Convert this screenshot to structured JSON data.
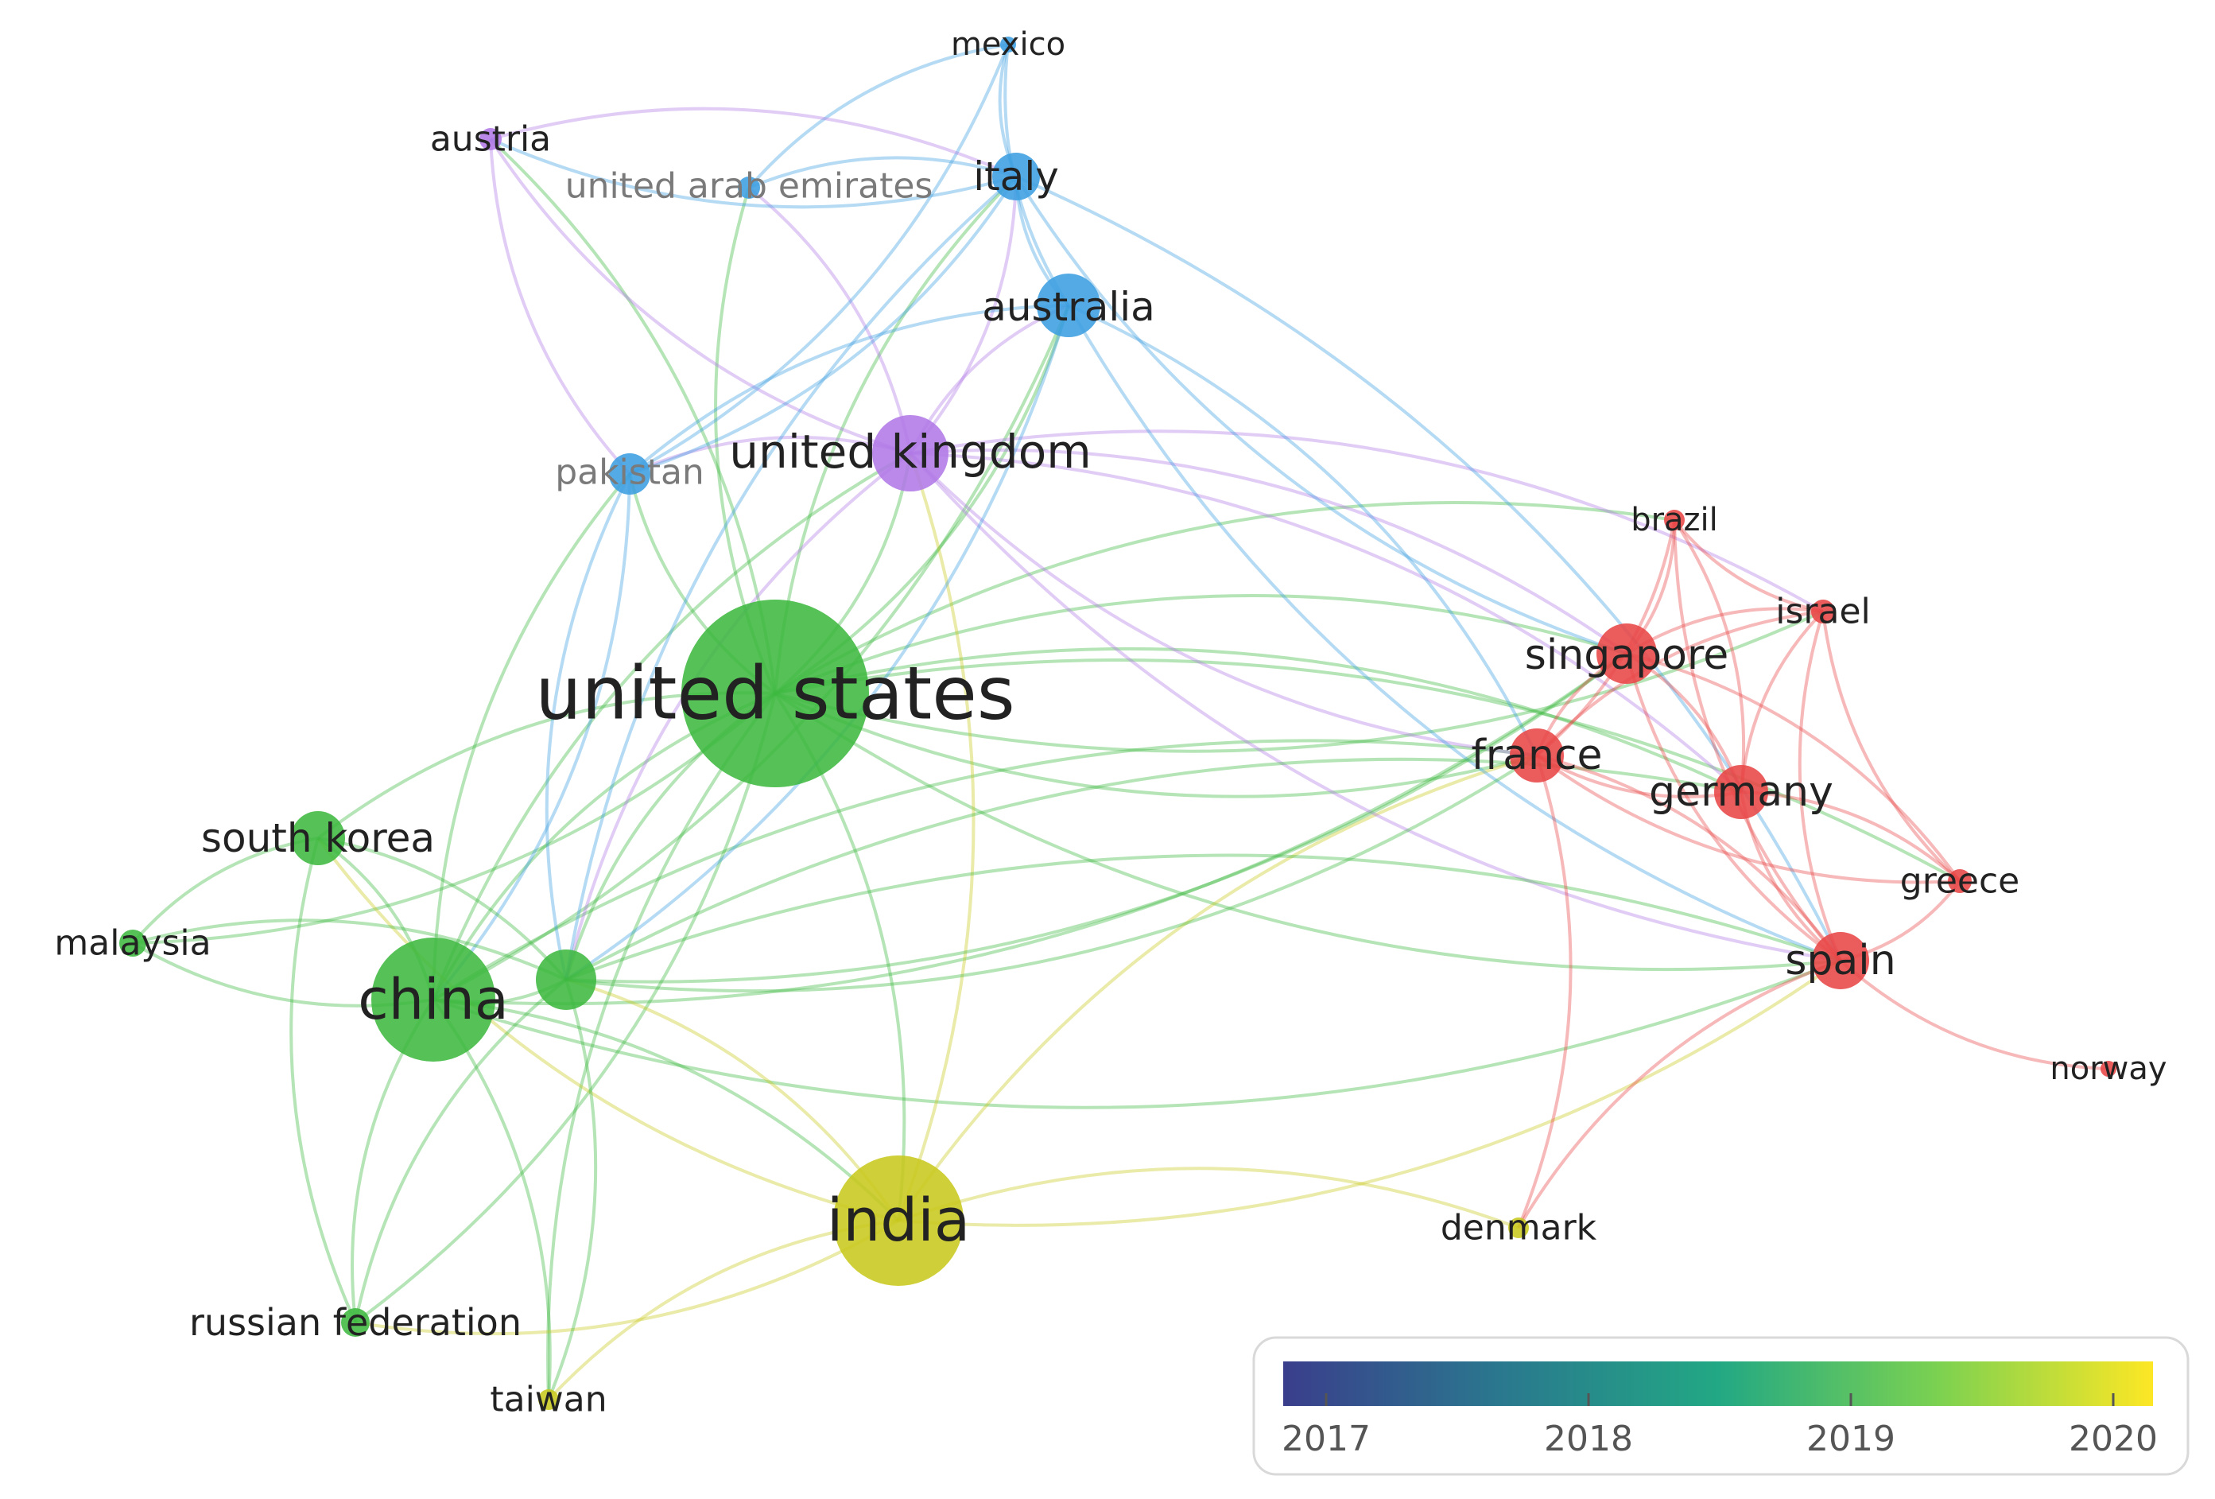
{
  "nodes": [
    {
      "id": "united_states",
      "label": "united states",
      "cluster": "green"
    },
    {
      "id": "china",
      "label": "china",
      "cluster": "green"
    },
    {
      "id": "india",
      "label": "india",
      "cluster": "yellow"
    },
    {
      "id": "united_kingdom",
      "label": "united kingdom",
      "cluster": "purple"
    },
    {
      "id": "italy",
      "label": "italy",
      "cluster": "blue"
    },
    {
      "id": "australia",
      "label": "australia",
      "cluster": "blue"
    },
    {
      "id": "pakistan",
      "label": "pakistan",
      "cluster": "blue"
    },
    {
      "id": "united_arab_emirates",
      "label": "united arab emirates",
      "cluster": "blue"
    },
    {
      "id": "mexico",
      "label": "mexico",
      "cluster": "blue"
    },
    {
      "id": "austria",
      "label": "austria",
      "cluster": "purple"
    },
    {
      "id": "south_korea",
      "label": "south korea",
      "cluster": "green"
    },
    {
      "id": "malaysia",
      "label": "malaysia",
      "cluster": "green"
    },
    {
      "id": "unlabeled_green",
      "label": "",
      "cluster": "green"
    },
    {
      "id": "russian_federation",
      "label": "russian federation",
      "cluster": "green"
    },
    {
      "id": "taiwan",
      "label": "taiwan",
      "cluster": "yellow"
    },
    {
      "id": "denmark",
      "label": "denmark",
      "cluster": "yellow"
    },
    {
      "id": "singapore",
      "label": "singapore",
      "cluster": "red"
    },
    {
      "id": "france",
      "label": "france",
      "cluster": "red"
    },
    {
      "id": "germany",
      "label": "germany",
      "cluster": "red"
    },
    {
      "id": "brazil",
      "label": "brazil",
      "cluster": "red"
    },
    {
      "id": "israel",
      "label": "israel",
      "cluster": "red"
    },
    {
      "id": "greece",
      "label": "greece",
      "cluster": "red"
    },
    {
      "id": "spain",
      "label": "spain",
      "cluster": "red"
    },
    {
      "id": "norway",
      "label": "norway",
      "cluster": "red"
    }
  ],
  "edges": [
    [
      "united_states",
      "china"
    ],
    [
      "united_states",
      "india"
    ],
    [
      "united_states",
      "united_kingdom"
    ],
    [
      "united_states",
      "italy"
    ],
    [
      "united_states",
      "australia"
    ],
    [
      "united_states",
      "pakistan"
    ],
    [
      "united_states",
      "south_korea"
    ],
    [
      "united_states",
      "malaysia"
    ],
    [
      "united_states",
      "unlabeled_green"
    ],
    [
      "united_states",
      "russian_federation"
    ],
    [
      "united_states",
      "taiwan"
    ],
    [
      "united_states",
      "singapore"
    ],
    [
      "united_states",
      "france"
    ],
    [
      "united_states",
      "germany"
    ],
    [
      "united_states",
      "spain"
    ],
    [
      "united_states",
      "brazil"
    ],
    [
      "united_states",
      "israel"
    ],
    [
      "united_states",
      "greece"
    ],
    [
      "united_states",
      "austria"
    ],
    [
      "united_states",
      "united_arab_emirates"
    ],
    [
      "china",
      "south_korea"
    ],
    [
      "china",
      "malaysia"
    ],
    [
      "china",
      "unlabeled_green"
    ],
    [
      "china",
      "india"
    ],
    [
      "china",
      "russian_federation"
    ],
    [
      "china",
      "united_kingdom"
    ],
    [
      "china",
      "australia"
    ],
    [
      "china",
      "pakistan"
    ],
    [
      "china",
      "spain"
    ],
    [
      "china",
      "france"
    ],
    [
      "china",
      "singapore"
    ],
    [
      "china",
      "taiwan"
    ],
    [
      "india",
      "unlabeled_green"
    ],
    [
      "india",
      "russian_federation"
    ],
    [
      "india",
      "taiwan"
    ],
    [
      "india",
      "denmark"
    ],
    [
      "india",
      "united_kingdom"
    ],
    [
      "india",
      "france"
    ],
    [
      "india",
      "spain"
    ],
    [
      "india",
      "south_korea"
    ],
    [
      "united_kingdom",
      "italy"
    ],
    [
      "united_kingdom",
      "australia"
    ],
    [
      "united_kingdom",
      "pakistan"
    ],
    [
      "united_kingdom",
      "austria"
    ],
    [
      "united_kingdom",
      "united_arab_emirates"
    ],
    [
      "united_kingdom",
      "singapore"
    ],
    [
      "united_kingdom",
      "france"
    ],
    [
      "united_kingdom",
      "germany"
    ],
    [
      "united_kingdom",
      "spain"
    ],
    [
      "united_kingdom",
      "israel"
    ],
    [
      "united_kingdom",
      "unlabeled_green"
    ],
    [
      "italy",
      "mexico"
    ],
    [
      "italy",
      "australia"
    ],
    [
      "italy",
      "pakistan"
    ],
    [
      "italy",
      "united_arab_emirates"
    ],
    [
      "italy",
      "austria"
    ],
    [
      "italy",
      "singapore"
    ],
    [
      "italy",
      "spain"
    ],
    [
      "italy",
      "unlabeled_green"
    ],
    [
      "australia",
      "mexico"
    ],
    [
      "australia",
      "pakistan"
    ],
    [
      "australia",
      "unlabeled_green"
    ],
    [
      "australia",
      "spain"
    ],
    [
      "australia",
      "france"
    ],
    [
      "mexico",
      "united_arab_emirates"
    ],
    [
      "mexico",
      "pakistan"
    ],
    [
      "austria",
      "pakistan"
    ],
    [
      "austria",
      "italy"
    ],
    [
      "pakistan",
      "unlabeled_green"
    ],
    [
      "pakistan",
      "china"
    ],
    [
      "south_korea",
      "malaysia"
    ],
    [
      "south_korea",
      "unlabeled_green"
    ],
    [
      "south_korea",
      "russian_federation"
    ],
    [
      "malaysia",
      "unlabeled_green"
    ],
    [
      "unlabeled_green",
      "russian_federation"
    ],
    [
      "unlabeled_green",
      "taiwan"
    ],
    [
      "unlabeled_green",
      "france"
    ],
    [
      "unlabeled_green",
      "spain"
    ],
    [
      "unlabeled_green",
      "singapore"
    ],
    [
      "unlabeled_green",
      "germany"
    ],
    [
      "singapore",
      "france"
    ],
    [
      "singapore",
      "germany"
    ],
    [
      "singapore",
      "brazil"
    ],
    [
      "singapore",
      "israel"
    ],
    [
      "singapore",
      "spain"
    ],
    [
      "singapore",
      "greece"
    ],
    [
      "france",
      "germany"
    ],
    [
      "france",
      "spain"
    ],
    [
      "france",
      "brazil"
    ],
    [
      "france",
      "israel"
    ],
    [
      "france",
      "greece"
    ],
    [
      "france",
      "denmark"
    ],
    [
      "germany",
      "spain"
    ],
    [
      "germany",
      "israel"
    ],
    [
      "germany",
      "brazil"
    ],
    [
      "germany",
      "greece"
    ],
    [
      "spain",
      "greece"
    ],
    [
      "spain",
      "israel"
    ],
    [
      "spain",
      "norway"
    ],
    [
      "spain",
      "brazil"
    ],
    [
      "spain",
      "denmark"
    ],
    [
      "israel",
      "brazil"
    ],
    [
      "israel",
      "greece"
    ]
  ],
  "colors": {
    "green": "#3db840",
    "yellow": "#c8c81e",
    "purple": "#b179e6",
    "blue": "#3c9ee0",
    "red": "#e84545"
  },
  "legend": {
    "ticks": [
      "2017",
      "2018",
      "2019",
      "2020"
    ],
    "gradient": [
      "#3a3e8c",
      "#2a788e",
      "#22a884",
      "#7ad151",
      "#fde725"
    ]
  }
}
